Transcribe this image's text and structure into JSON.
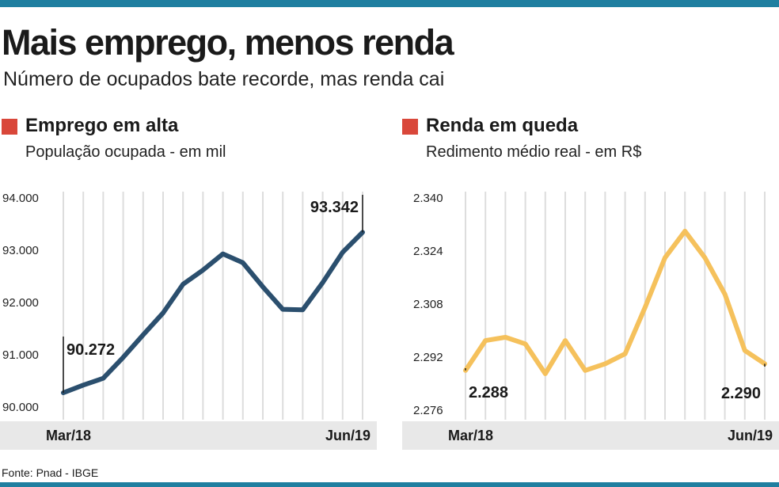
{
  "header": {
    "title": "Mais emprego, menos renda",
    "subtitle": "Número de ocupados bate recorde, mas renda cai"
  },
  "source": "Fonte:  Pnad - IBGE",
  "colors": {
    "top_bar": "#1f7fa0",
    "marker": "#d9473a",
    "line_emprego": "#2b4f6e",
    "line_renda": "#f5c15c",
    "axis_band": "#e8e8e8",
    "grid": "#dddddd"
  },
  "chart_data": [
    {
      "type": "line",
      "title": "Emprego em alta",
      "subtitle": "População ocupada - em mil",
      "x_start_label": "Mar/18",
      "x_end_label": "Jun/19",
      "ylim": [
        90000,
        94000
      ],
      "yticks": [
        90000,
        91000,
        92000,
        93000,
        94000
      ],
      "ytick_labels": [
        "90.000",
        "91.000",
        "92.000",
        "93.000",
        "94.000"
      ],
      "grid": true,
      "values": [
        90272,
        90420,
        90550,
        90950,
        91380,
        91800,
        92350,
        92620,
        92930,
        92760,
        92300,
        91870,
        91860,
        92380,
        92960,
        93342
      ],
      "annotations": [
        {
          "index": 0,
          "label": "90.272"
        },
        {
          "index": 15,
          "label": "93.342"
        }
      ]
    },
    {
      "type": "line",
      "title": "Renda em queda",
      "subtitle": "Redimento médio real - em R$",
      "x_start_label": "Mar/18",
      "x_end_label": "Jun/19",
      "ylim": [
        2276,
        2340
      ],
      "yticks": [
        2276,
        2292,
        2308,
        2324,
        2340
      ],
      "ytick_labels": [
        "2.276",
        "2.292",
        "2.308",
        "2.324",
        "2.340"
      ],
      "grid": true,
      "values": [
        2288,
        2297,
        2298,
        2296,
        2287,
        2297,
        2288,
        2290,
        2293,
        2307,
        2322,
        2330,
        2322,
        2311,
        2294,
        2290
      ],
      "annotations": [
        {
          "index": 0,
          "label": "2.288"
        },
        {
          "index": 15,
          "label": "2.290"
        }
      ]
    }
  ]
}
